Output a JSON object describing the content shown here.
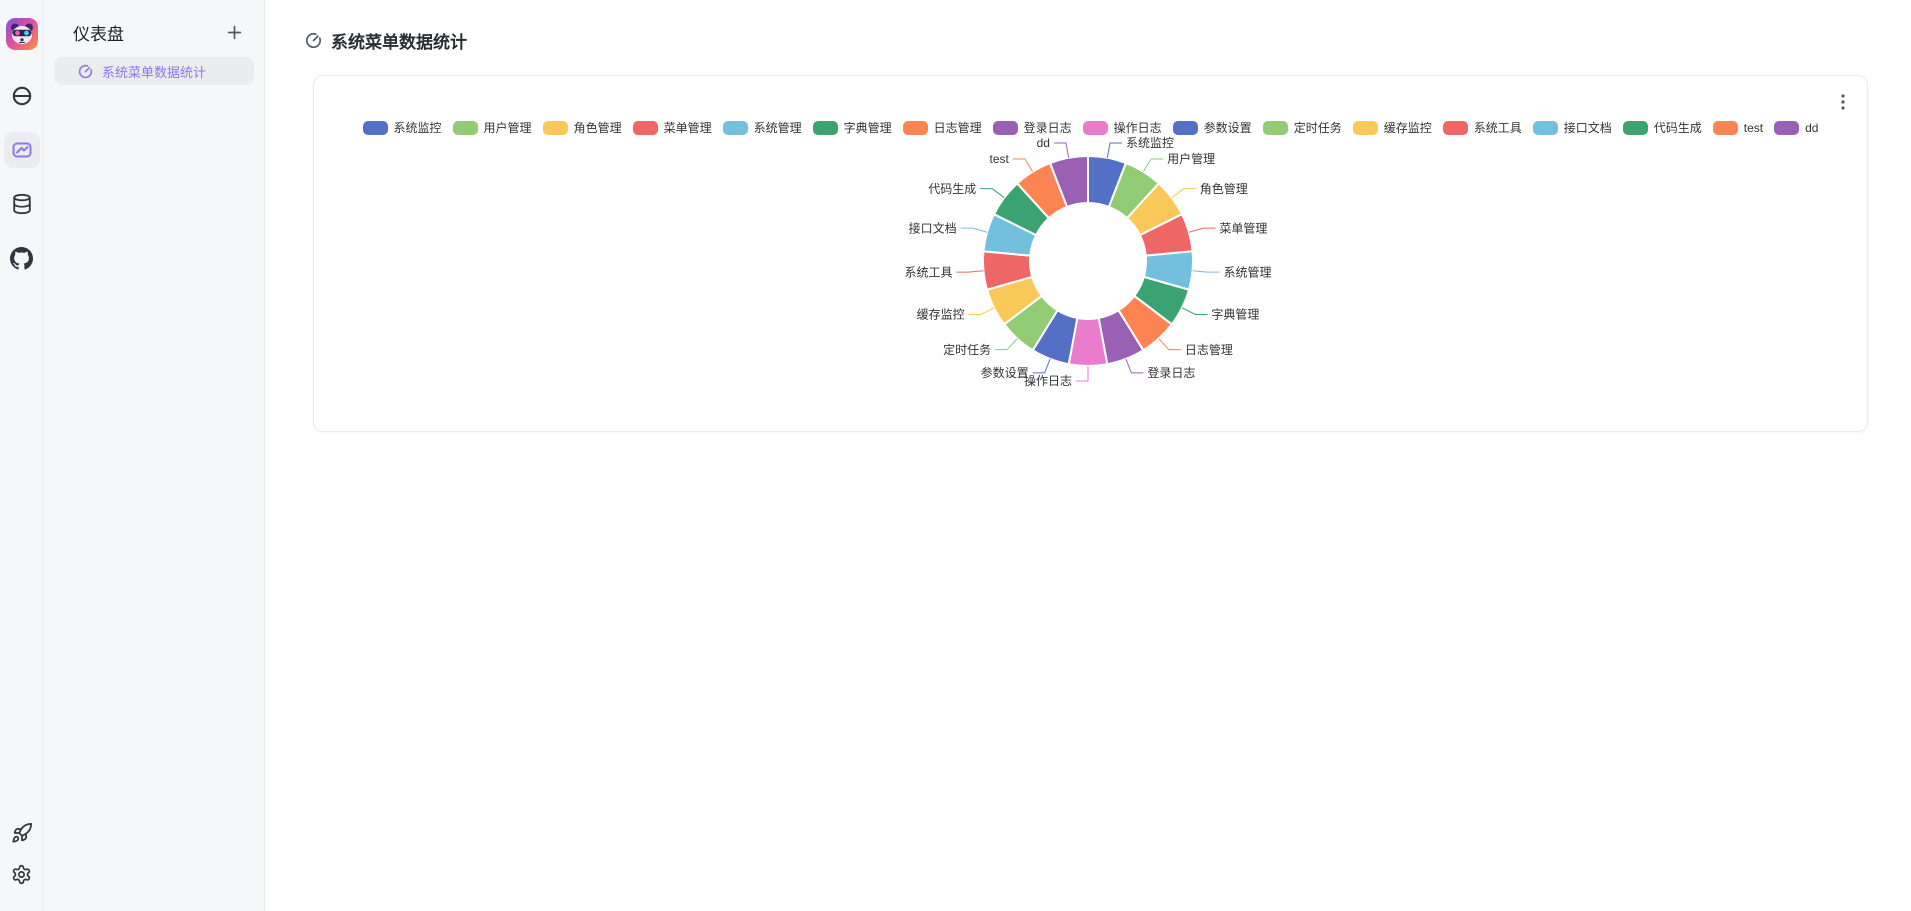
{
  "rail": {
    "items": [
      {
        "name": "app-logo",
        "icon": "panda-logo-icon",
        "active": false
      },
      {
        "name": "connections",
        "icon": "link-icon",
        "active": false
      },
      {
        "name": "dashboard",
        "icon": "chart-box-icon",
        "active": true
      },
      {
        "name": "database",
        "icon": "database-icon",
        "active": false
      },
      {
        "name": "github",
        "icon": "github-icon",
        "active": false
      },
      {
        "name": "launch",
        "icon": "rocket-icon",
        "active": false
      },
      {
        "name": "settings",
        "icon": "gear-icon",
        "active": false
      }
    ]
  },
  "sidebar": {
    "title": "仪表盘",
    "add_icon": "plus-icon",
    "items": [
      {
        "icon": "gauge-icon",
        "label": "系统菜单数据统计",
        "active": true
      }
    ]
  },
  "main": {
    "header": {
      "icon": "gauge-icon",
      "title": "系统菜单数据统计"
    },
    "card": {
      "more_icon": "kebab-menu-icon"
    }
  },
  "chart_data": {
    "type": "pie",
    "variant": "donut",
    "title": "系统菜单数据统计",
    "legend_position": "top",
    "inner_radius_ratio": 0.55,
    "label_lines": true,
    "labels": [
      "系统监控",
      "用户管理",
      "角色管理",
      "菜单管理",
      "系统管理",
      "字典管理",
      "日志管理",
      "登录日志",
      "操作日志",
      "参数设置",
      "定时任务",
      "缓存监控",
      "系统工具",
      "接口文档",
      "代码生成",
      "test",
      "dd"
    ],
    "values": [
      1,
      1,
      1,
      1,
      1,
      1,
      1,
      1,
      1,
      1,
      1,
      1,
      1,
      1,
      1,
      1,
      1
    ],
    "colors": [
      "#5470c6",
      "#91cc75",
      "#fac858",
      "#ee6666",
      "#73c0de",
      "#3ba272",
      "#fc8452",
      "#9a60b4",
      "#ea7ccc"
    ]
  },
  "ui_colors": {
    "accent": "#8f75ea",
    "panel_bg": "#f6f7f9",
    "selected_bg": "#ebecee",
    "card_border": "#eaebee",
    "icon_dark": "#2f3640",
    "text_primary": "#2b2d31",
    "legend_text": "#333333"
  }
}
